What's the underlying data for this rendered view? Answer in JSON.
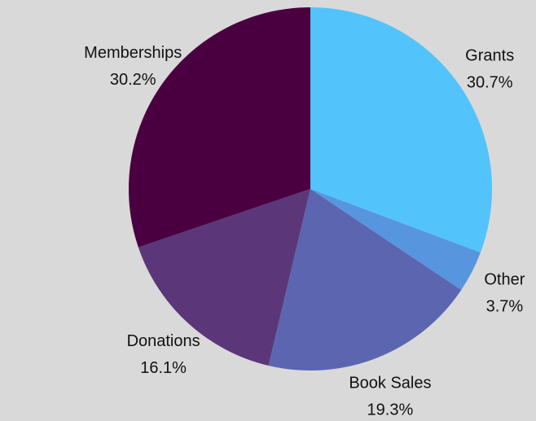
{
  "chart_data": {
    "type": "pie",
    "start_angle": "12 o'clock",
    "direction": "clockwise",
    "slices": [
      {
        "label": "Grants",
        "value": 30.7,
        "value_label": "30.7%",
        "color": "#53c3fb"
      },
      {
        "label": "Other",
        "value": 3.7,
        "value_label": "3.7%",
        "color": "#5796de"
      },
      {
        "label": "Book Sales",
        "value": 19.3,
        "value_label": "19.3%",
        "color": "#5c65b0"
      },
      {
        "label": "Donations",
        "value": 16.1,
        "value_label": "16.1%",
        "color": "#5b3779"
      },
      {
        "label": "Memberships",
        "value": 30.2,
        "value_label": "30.2%",
        "color": "#4a0040"
      }
    ]
  },
  "background_color": "#d9d9d9"
}
